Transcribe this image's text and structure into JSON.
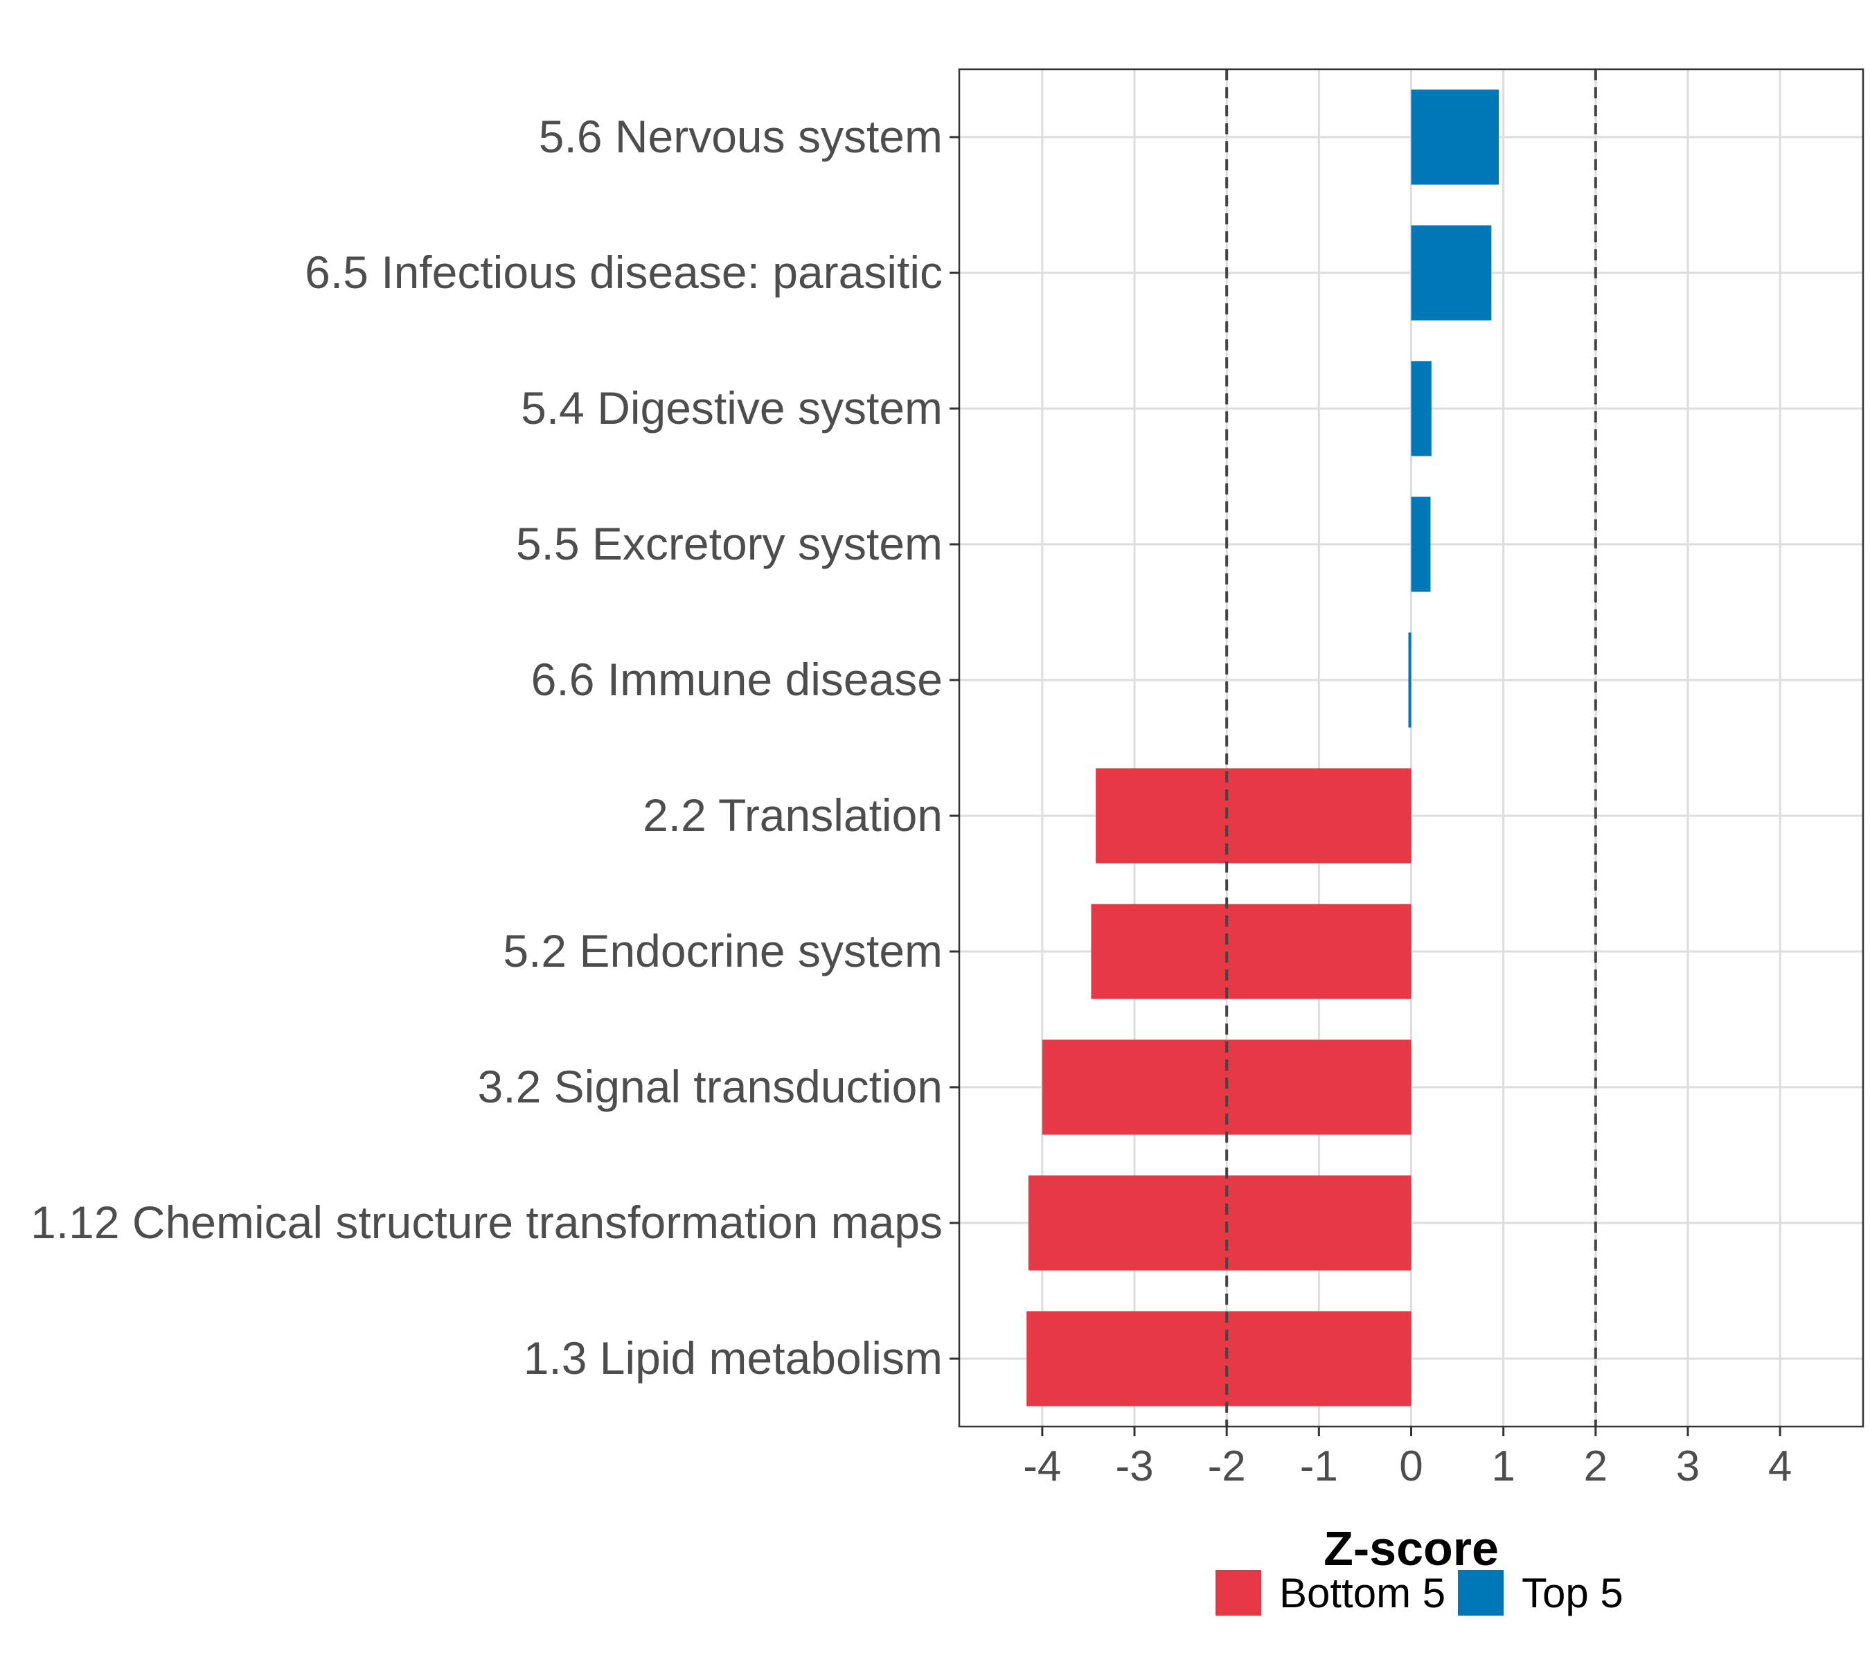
{
  "chart_data": {
    "type": "bar",
    "orientation": "horizontal",
    "xlabel": "Z-score",
    "ylabel": "",
    "xlim": [
      -4.9,
      4.9
    ],
    "x_ticks": [
      -4,
      -3,
      -2,
      -1,
      0,
      1,
      2,
      3,
      4
    ],
    "reference_lines": [
      -2,
      2
    ],
    "grid": true,
    "legend_position": "bottom",
    "categories": [
      "5.6 Nervous system",
      "6.5 Infectious disease: parasitic",
      "5.4 Digestive system",
      "5.5 Excretory system",
      "6.6 Immune disease",
      "2.2 Translation",
      "5.2 Endocrine system",
      "3.2 Signal transduction",
      "1.12 Chemical structure transformation maps",
      "1.3 Lipid metabolism"
    ],
    "values": [
      0.95,
      0.87,
      0.22,
      0.21,
      -0.03,
      -3.42,
      -3.47,
      -4.0,
      -4.15,
      -4.17
    ],
    "groups": [
      "Top 5",
      "Top 5",
      "Top 5",
      "Top 5",
      "Top 5",
      "Bottom 5",
      "Bottom 5",
      "Bottom 5",
      "Bottom 5",
      "Bottom 5"
    ],
    "legend": [
      {
        "name": "Bottom 5",
        "color": "#e63946"
      },
      {
        "name": "Top 5",
        "color": "#0077b6"
      }
    ]
  }
}
